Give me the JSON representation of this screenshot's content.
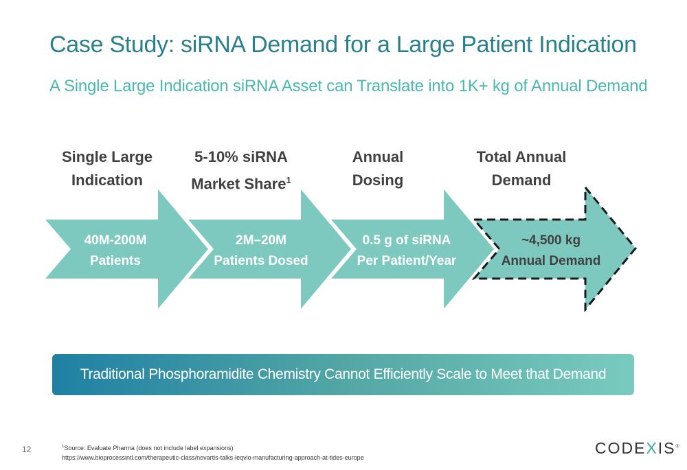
{
  "slide": {
    "title": "Case Study: siRNA Demand for a Large Patient Indication",
    "subtitle": "A Single Large Indication siRNA Asset can Translate into 1K+ kg of Annual Demand",
    "page_number": "12"
  },
  "steps": [
    {
      "head_line1": "Single Large",
      "head_line2": "Indication",
      "body_line1": "40M-200M",
      "body_line2": "Patients"
    },
    {
      "head_line1": "5-10% siRNA",
      "head_line2": "Market Share",
      "head_sup": "1",
      "body_line1": "2M–20M",
      "body_line2": "Patients Dosed"
    },
    {
      "head_line1": "Annual",
      "head_line2": "Dosing",
      "body_line1": "0.5 g of siRNA",
      "body_line2": "Per Patient/Year"
    },
    {
      "head_line1": "Total Annual",
      "head_line2": "Demand",
      "body_line1": "~4,500 kg",
      "body_line2": "Annual Demand"
    }
  ],
  "banner": {
    "text": "Traditional Phosphoramidite Chemistry Cannot Efficiently Scale to Meet that Demand"
  },
  "footnote": {
    "marker": "1",
    "source": "Source: Evaluate Pharma (does not include label expansions)",
    "url": "https://www.bioprocessintl.com/therapeutic-class/novartis-talks-leqvio-manufacturing-approach-at-tides-europe"
  },
  "logo": {
    "part1": "CODE",
    "part2": "X",
    "part3": "IS",
    "mark": "®"
  },
  "colors": {
    "title": "#2a7f8c",
    "subtitle": "#49b8b0",
    "arrow_fill": "#7dc9bf",
    "banner_start": "#1f80a4",
    "banner_end": "#79cbbf"
  }
}
